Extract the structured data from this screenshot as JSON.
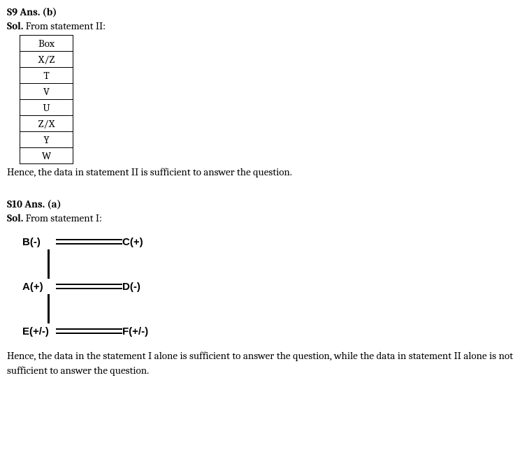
{
  "s9": {
    "heading": "S9 Ans. (b)",
    "sol_label": "Sol.",
    "sol_text": " From statement II:",
    "table_header": "Box",
    "table_rows": [
      "X/Z",
      "T",
      "V",
      "U",
      "Z/X",
      "Y",
      "W"
    ],
    "conclusion": "Hence, the data in statement II is sufficient to answer the question."
  },
  "s10": {
    "heading": "S10 Ans. (a)",
    "sol_label": "Sol.",
    "sol_text": " From statement I:",
    "tree": {
      "row1_left": "B(-)",
      "row1_right": "C(+)",
      "row2_left": "A(+)",
      "row2_right": "D(-)",
      "row3_left": "E(+/-)",
      "row3_right": "F(+/-)"
    },
    "conclusion": "Hence, the data in the statement I alone is sufficient to answer the question, while the data in statement II alone is not sufficient to answer the question."
  }
}
